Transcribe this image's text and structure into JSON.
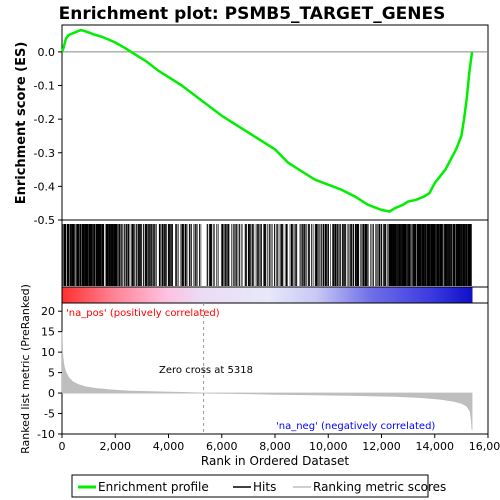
{
  "chart_data": {
    "type": "line",
    "title": "Enrichment plot: PSMB5_TARGET_GENES",
    "es_ylabel": "Enrichment score (ES)",
    "rank_ylabel": "Ranked list metric (PreRanked)",
    "xlabel": "Rank in Ordered Dataset",
    "x_ticks": [
      "0",
      "2,000",
      "4,000",
      "6,000",
      "8,000",
      "10,000",
      "12,000",
      "14,000",
      "16,000"
    ],
    "x_tick_values": [
      0,
      2000,
      4000,
      6000,
      8000,
      10000,
      12000,
      14000,
      16000
    ],
    "es_ticks": [
      "0.0",
      "-0.1",
      "-0.2",
      "-0.3",
      "-0.4",
      "-0.5"
    ],
    "es_tick_values": [
      0.0,
      -0.1,
      -0.2,
      -0.3,
      -0.4,
      -0.5
    ],
    "rank_ticks": [
      "20",
      "15",
      "10",
      "5",
      "0",
      "-5",
      "-10"
    ],
    "rank_tick_values": [
      20,
      15,
      10,
      5,
      0,
      -5,
      -10
    ],
    "xlim": [
      0,
      16000
    ],
    "es_ylim": [
      -0.5,
      0.08
    ],
    "rank_ylim": [
      -10,
      22
    ],
    "n_genes": 15400,
    "enrichment_profile": {
      "name": "Enrichment profile",
      "color": "#00ee00",
      "x": [
        0,
        50,
        150,
        250,
        400,
        550,
        700,
        850,
        1000,
        1200,
        1500,
        1800,
        2000,
        2400,
        2800,
        3200,
        3600,
        4000,
        4500,
        5000,
        5500,
        6000,
        6500,
        7000,
        7500,
        8000,
        8500,
        9000,
        9500,
        10000,
        10500,
        11000,
        11500,
        12000,
        12300,
        12500,
        12800,
        13000,
        13300,
        13600,
        13800,
        14000,
        14200,
        14400,
        14600,
        14800,
        15000,
        15100,
        15200,
        15300,
        15400
      ],
      "y": [
        0.0,
        0.01,
        0.04,
        0.05,
        0.055,
        0.06,
        0.065,
        0.062,
        0.058,
        0.052,
        0.045,
        0.035,
        0.028,
        0.01,
        -0.01,
        -0.03,
        -0.055,
        -0.075,
        -0.1,
        -0.13,
        -0.16,
        -0.19,
        -0.215,
        -0.24,
        -0.265,
        -0.29,
        -0.33,
        -0.355,
        -0.38,
        -0.395,
        -0.41,
        -0.43,
        -0.455,
        -0.47,
        -0.475,
        -0.465,
        -0.455,
        -0.445,
        -0.44,
        -0.43,
        -0.42,
        -0.39,
        -0.37,
        -0.35,
        -0.32,
        -0.29,
        -0.25,
        -0.2,
        -0.14,
        -0.06,
        0.0
      ]
    },
    "hits": {
      "name": "Hits",
      "color": "#000000"
    },
    "ranking_metric": {
      "name": "Ranking metric scores",
      "color": "#bebebe",
      "x": [
        0,
        30,
        80,
        150,
        250,
        400,
        600,
        900,
        1300,
        1800,
        2500,
        3500,
        4500,
        5318,
        6500,
        8000,
        9500,
        11000,
        12500,
        13500,
        14200,
        14700,
        15000,
        15200,
        15330,
        15380,
        15400
      ],
      "y": [
        15,
        9,
        6.5,
        5,
        3.8,
        2.8,
        2.1,
        1.5,
        1.1,
        0.8,
        0.5,
        0.3,
        0.15,
        0,
        -0.1,
        -0.3,
        -0.45,
        -0.6,
        -0.8,
        -1.1,
        -1.5,
        -2.0,
        -2.5,
        -3.2,
        -4.5,
        -7,
        -9
      ]
    },
    "zero_cross_label": "Zero cross at 5318",
    "zero_cross": 5318,
    "pos_label": "'na_pos' (positively correlated)",
    "neg_label": "'na_neg' (negatively correlated)",
    "pos_color": "#ff0000",
    "neg_color": "#0000ff"
  },
  "legend": {
    "items": [
      {
        "label": "Enrichment profile",
        "color": "#00ee00"
      },
      {
        "label": "Hits",
        "color": "#000000"
      },
      {
        "label": "Ranking metric scores",
        "color": "#bebebe"
      }
    ]
  }
}
